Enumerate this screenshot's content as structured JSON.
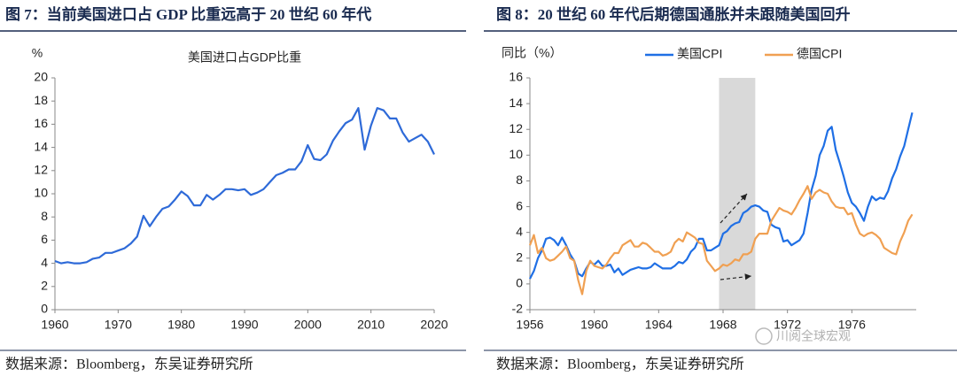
{
  "figures": [
    {
      "caption": "图 7：当前美国进口占 GDP 比重远高于 20 世纪 60 年代",
      "source": "数据来源：Bloomberg，东吴证券研究所"
    },
    {
      "caption": "图 8：20 世纪 60 年代后期德国通胀并未跟随美国回升",
      "source": "数据来源：Bloomberg，东吴证券研究所"
    }
  ],
  "chart_data": [
    {
      "type": "line",
      "title": "美国进口占GDP比重",
      "ylabel": "%",
      "x": [
        1960,
        1961,
        1962,
        1963,
        1964,
        1965,
        1966,
        1967,
        1968,
        1969,
        1970,
        1971,
        1972,
        1973,
        1974,
        1975,
        1976,
        1977,
        1978,
        1979,
        1980,
        1981,
        1982,
        1983,
        1984,
        1985,
        1986,
        1987,
        1988,
        1989,
        1990,
        1991,
        1992,
        1993,
        1994,
        1995,
        1996,
        1997,
        1998,
        1999,
        2000,
        2001,
        2002,
        2003,
        2004,
        2005,
        2006,
        2007,
        2008,
        2009,
        2010,
        2011,
        2012,
        2013,
        2014,
        2015,
        2016,
        2017,
        2018,
        2019,
        2020
      ],
      "series": [
        {
          "color": "#2e6ad8",
          "values": [
            4.2,
            4.0,
            4.1,
            4.0,
            4.0,
            4.1,
            4.4,
            4.5,
            4.9,
            4.9,
            5.1,
            5.3,
            5.7,
            6.3,
            8.1,
            7.2,
            8.0,
            8.7,
            8.9,
            9.5,
            10.2,
            9.8,
            9.0,
            9.0,
            9.9,
            9.5,
            9.9,
            10.4,
            10.4,
            10.3,
            10.4,
            9.9,
            10.1,
            10.4,
            11.0,
            11.6,
            11.8,
            12.1,
            12.1,
            12.8,
            14.2,
            13.0,
            12.9,
            13.4,
            14.6,
            15.4,
            16.1,
            16.4,
            17.4,
            13.8,
            15.9,
            17.4,
            17.2,
            16.5,
            16.5,
            15.3,
            14.5,
            14.8,
            15.1,
            14.5,
            13.4
          ]
        }
      ],
      "xlim": [
        1960,
        2020
      ],
      "xticks": [
        1960,
        1970,
        1980,
        1990,
        2000,
        2010,
        2020
      ],
      "ylim": [
        0,
        20
      ],
      "yticks": [
        0,
        2,
        4,
        6,
        8,
        10,
        12,
        14,
        16,
        18,
        20
      ]
    },
    {
      "type": "line",
      "ylabel": "同比（%）",
      "legend": "top",
      "highlight_x": [
        1967.75,
        1970
      ],
      "watermark": "川阅全球宏观",
      "x": [
        1956,
        1956.25,
        1956.5,
        1956.75,
        1957,
        1957.25,
        1957.5,
        1957.75,
        1958,
        1958.25,
        1958.5,
        1958.75,
        1959,
        1959.25,
        1959.5,
        1959.75,
        1960,
        1960.25,
        1960.5,
        1960.75,
        1961,
        1961.25,
        1961.5,
        1961.75,
        1962,
        1962.25,
        1962.5,
        1962.75,
        1963,
        1963.25,
        1963.5,
        1963.75,
        1964,
        1964.25,
        1964.5,
        1964.75,
        1965,
        1965.25,
        1965.5,
        1965.75,
        1966,
        1966.25,
        1966.5,
        1966.75,
        1967,
        1967.25,
        1967.5,
        1967.75,
        1968,
        1968.25,
        1968.5,
        1968.75,
        1969,
        1969.25,
        1969.5,
        1969.75,
        1970,
        1970.25,
        1970.5,
        1970.75,
        1971,
        1971.25,
        1971.5,
        1971.75,
        1972,
        1972.25,
        1972.5,
        1972.75,
        1973,
        1973.25,
        1973.5,
        1973.75,
        1974,
        1974.25,
        1974.5,
        1974.75,
        1975,
        1975.25,
        1975.5,
        1975.75,
        1976,
        1976.25,
        1976.5,
        1976.75,
        1977,
        1977.25,
        1977.5,
        1977.75,
        1978,
        1978.25,
        1978.5,
        1978.75,
        1979,
        1979.25,
        1979.5,
        1979.75
      ],
      "series": [
        {
          "name": "美国CPI",
          "color": "#1f6fe5",
          "values": [
            0.4,
            1.0,
            2.0,
            2.6,
            3.5,
            3.6,
            3.4,
            3.0,
            3.6,
            3.0,
            2.3,
            1.8,
            0.8,
            0.6,
            1.2,
            1.7,
            1.5,
            1.8,
            1.4,
            1.4,
            1.5,
            0.9,
            1.2,
            0.7,
            0.9,
            1.1,
            1.2,
            1.3,
            1.2,
            1.2,
            1.3,
            1.6,
            1.4,
            1.2,
            1.2,
            1.2,
            1.4,
            1.7,
            1.6,
            1.9,
            2.5,
            2.8,
            3.5,
            3.5,
            2.6,
            2.6,
            2.8,
            3.0,
            3.9,
            4.1,
            4.5,
            4.7,
            4.8,
            5.5,
            5.7,
            6.0,
            6.1,
            6.0,
            5.7,
            5.6,
            4.6,
            4.4,
            4.3,
            3.3,
            3.4,
            3.0,
            3.2,
            3.4,
            3.9,
            5.5,
            7.3,
            8.4,
            10.0,
            10.7,
            11.9,
            12.2,
            10.4,
            9.4,
            8.3,
            7.1,
            6.3,
            6.0,
            5.5,
            4.9,
            6.0,
            6.8,
            6.5,
            6.7,
            6.6,
            7.2,
            8.2,
            8.9,
            9.9,
            10.7,
            12.0,
            13.3
          ]
        },
        {
          "name": "德国CPI",
          "color": "#f0a052",
          "values": [
            3.0,
            3.8,
            2.4,
            2.8,
            2.0,
            1.8,
            1.9,
            2.2,
            2.5,
            2.9,
            2.0,
            1.8,
            0.3,
            -0.8,
            1.0,
            1.8,
            1.4,
            1.3,
            1.2,
            1.5,
            2.0,
            2.4,
            2.4,
            3.0,
            3.2,
            3.4,
            2.9,
            2.9,
            3.2,
            3.1,
            2.8,
            2.5,
            2.5,
            2.2,
            2.3,
            2.5,
            3.2,
            3.5,
            3.3,
            4.0,
            3.8,
            3.6,
            3.2,
            3.1,
            1.8,
            1.4,
            1.0,
            1.2,
            1.5,
            1.4,
            1.6,
            1.9,
            1.8,
            2.3,
            2.3,
            2.5,
            3.5,
            3.9,
            3.9,
            3.9,
            4.9,
            5.4,
            5.9,
            5.7,
            5.6,
            5.4,
            5.9,
            6.5,
            7.0,
            7.6,
            6.6,
            7.1,
            7.3,
            7.1,
            7.0,
            6.4,
            6.0,
            5.9,
            5.9,
            5.4,
            5.5,
            4.6,
            3.9,
            3.7,
            3.9,
            4.0,
            3.8,
            3.5,
            2.8,
            2.6,
            2.4,
            2.3,
            3.3,
            4.0,
            4.9,
            5.4
          ]
        }
      ],
      "xlim": [
        1956,
        1980
      ],
      "xticks": [
        1956,
        1960,
        1964,
        1968,
        1972,
        1976
      ],
      "ylim": [
        -2,
        16
      ],
      "yticks": [
        -2,
        0,
        2,
        4,
        6,
        8,
        10,
        12,
        14,
        16
      ]
    }
  ]
}
